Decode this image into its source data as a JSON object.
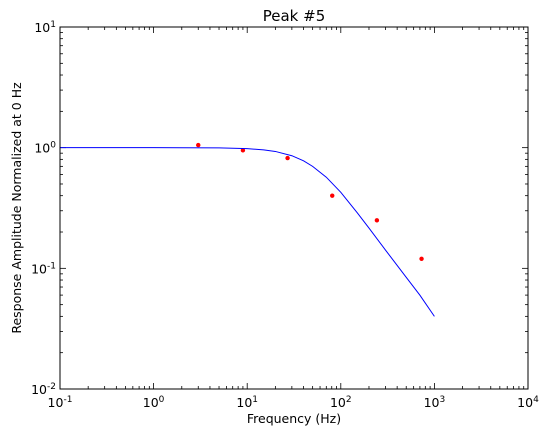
{
  "chart_data": {
    "type": "scatter",
    "title": "Peak #5",
    "xlabel": "Frequency (Hz)",
    "ylabel": "Response Amplitude Normalized at 0 Hz",
    "xscale": "log",
    "yscale": "log",
    "xlim": [
      0.1,
      10000
    ],
    "ylim": [
      0.01,
      10
    ],
    "grid": false,
    "legend": "none",
    "x_ticks": [
      {
        "value": 0.1,
        "base": "10",
        "exp": "-1"
      },
      {
        "value": 1,
        "base": "10",
        "exp": "0"
      },
      {
        "value": 10,
        "base": "10",
        "exp": "1"
      },
      {
        "value": 100,
        "base": "10",
        "exp": "2"
      },
      {
        "value": 1000,
        "base": "10",
        "exp": "3"
      },
      {
        "value": 10000,
        "base": "10",
        "exp": "4"
      }
    ],
    "y_ticks": [
      {
        "value": 0.01,
        "base": "10",
        "exp": "-2"
      },
      {
        "value": 0.1,
        "base": "10",
        "exp": "-1"
      },
      {
        "value": 1,
        "base": "10",
        "exp": "0"
      },
      {
        "value": 10,
        "base": "10",
        "exp": "1"
      }
    ],
    "series": [
      {
        "type": "scatter",
        "color": "#ff0000",
        "x": [
          3,
          9,
          27,
          81,
          243,
          729
        ],
        "y": [
          1.05,
          0.95,
          0.82,
          0.4,
          0.25,
          0.12
        ]
      },
      {
        "type": "line",
        "color": "#0000ff",
        "x": [
          0.1,
          0.2,
          0.5,
          1,
          2,
          5,
          10,
          15,
          20,
          30,
          40,
          50,
          70,
          100,
          150,
          200,
          300,
          500,
          700,
          1000
        ],
        "y": [
          1.0,
          1.0,
          1.0,
          0.9998,
          0.9993,
          0.9954,
          0.9816,
          0.9595,
          0.9304,
          0.8575,
          0.7778,
          0.7,
          0.5693,
          0.4264,
          0.2887,
          0.2158,
          0.1418,
          0.0842,
          0.0599,
          0.04
        ]
      }
    ]
  }
}
